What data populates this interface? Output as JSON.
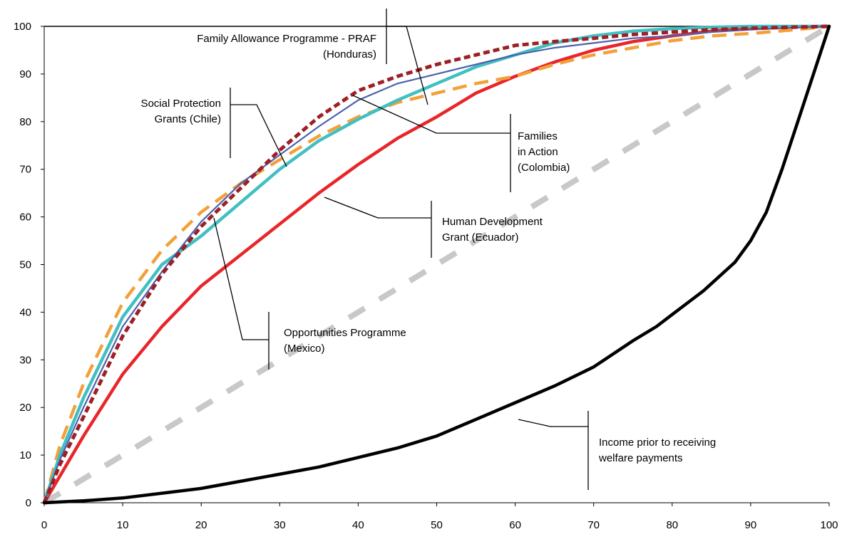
{
  "chart_data": {
    "type": "line",
    "title": "",
    "xlabel": "",
    "ylabel": "",
    "xlim": [
      0,
      100
    ],
    "ylim": [
      0,
      100
    ],
    "x_ticks": [
      0,
      10,
      20,
      30,
      40,
      50,
      60,
      70,
      80,
      90,
      100
    ],
    "y_ticks": [
      0,
      10,
      20,
      30,
      40,
      50,
      60,
      70,
      80,
      90,
      100
    ],
    "grid": false,
    "legend": "none",
    "series": [
      {
        "key": "equality",
        "color": "#c8c8c8",
        "style": "dashed-thick",
        "x": [
          0,
          100
        ],
        "y": [
          0,
          100
        ]
      },
      {
        "key": "ecuador",
        "color": "#e8262a",
        "style": "solid-thick",
        "x": [
          0,
          5,
          10,
          15,
          20,
          25,
          30,
          35,
          40,
          45,
          50,
          55,
          60,
          65,
          70,
          75,
          80,
          85,
          90,
          95,
          100
        ],
        "y": [
          0,
          14,
          27,
          37,
          45.5,
          52,
          58.5,
          65,
          71,
          76.5,
          81,
          86,
          89.5,
          92.5,
          95,
          96.8,
          98,
          99,
          99.6,
          99.9,
          100
        ]
      },
      {
        "key": "colombia",
        "color": "#f2a13a",
        "style": "dashed-thick",
        "x": [
          0,
          2,
          5,
          10,
          15,
          20,
          25,
          30,
          35,
          40,
          45,
          50,
          55,
          60,
          65,
          70,
          75,
          80,
          85,
          90,
          95,
          100
        ],
        "y": [
          0,
          12,
          25,
          42,
          53,
          61,
          67,
          72,
          77,
          81,
          84,
          86,
          88,
          89.5,
          92,
          94,
          95.5,
          97,
          98,
          98.5,
          99.2,
          100
        ]
      },
      {
        "key": "chile",
        "color": "#42bfc1",
        "style": "solid-thick",
        "x": [
          0,
          2,
          5,
          10,
          15,
          20,
          25,
          30,
          35,
          40,
          45,
          50,
          55,
          60,
          65,
          70,
          75,
          80,
          85,
          90,
          95,
          100
        ],
        "y": [
          0,
          10,
          22,
          39,
          50,
          56,
          63,
          70,
          76,
          80.5,
          84.5,
          88,
          91.5,
          94,
          96.5,
          98,
          99,
          99.5,
          99.8,
          100,
          100,
          100
        ]
      },
      {
        "key": "mexico",
        "color": "#4a62b0",
        "style": "solid-thin",
        "x": [
          0,
          2,
          5,
          10,
          15,
          20,
          25,
          30,
          35,
          40,
          45,
          50,
          55,
          60,
          65,
          70,
          75,
          80,
          85,
          90,
          95,
          100
        ],
        "y": [
          0,
          9,
          20,
          37,
          48.5,
          59,
          67,
          73,
          79,
          84.5,
          88,
          90,
          92,
          94,
          95.5,
          96.5,
          97.5,
          98,
          98.8,
          99.3,
          99.7,
          100
        ]
      },
      {
        "key": "honduras",
        "color": "#9c2025",
        "style": "dotted-thick",
        "x": [
          0,
          2,
          5,
          10,
          15,
          20,
          25,
          30,
          35,
          40,
          45,
          50,
          55,
          60,
          65,
          70,
          75,
          80,
          85,
          90,
          95,
          100
        ],
        "y": [
          0,
          8,
          18,
          35,
          48,
          58,
          66,
          74,
          81,
          86.5,
          89.5,
          92,
          94,
          96,
          96.8,
          97.5,
          98.3,
          98.8,
          99.3,
          99.6,
          99.8,
          100
        ]
      },
      {
        "key": "prior",
        "color": "#000000",
        "style": "solid-thick",
        "x": [
          0,
          5,
          10,
          15,
          20,
          25,
          30,
          35,
          40,
          45,
          50,
          55,
          60,
          65,
          70,
          75,
          78,
          80,
          82,
          84,
          86,
          88,
          90,
          92,
          94,
          96,
          98,
          99,
          100
        ],
        "y": [
          0,
          0.4,
          1,
          2,
          3,
          4.5,
          6,
          7.5,
          9.5,
          11.5,
          14,
          17.5,
          21,
          24.5,
          28.5,
          34,
          37,
          39.5,
          42,
          44.5,
          47.5,
          50.5,
          55,
          61,
          70,
          80,
          90,
          95,
          100
        ]
      }
    ],
    "annotations": [
      {
        "key": "praf",
        "lines": [
          "Family Allowance Programme - PRAF",
          "(Honduras)"
        ]
      },
      {
        "key": "chile",
        "lines": [
          "Social Protection",
          "Grants (Chile)"
        ]
      },
      {
        "key": "colombia",
        "lines": [
          "Families",
          "in Action",
          "(Colombia)"
        ]
      },
      {
        "key": "ecuador",
        "lines": [
          "Human Development",
          "Grant (Ecuador)"
        ]
      },
      {
        "key": "mexico",
        "lines": [
          "Opportunities Programme",
          "(Mexico)"
        ]
      },
      {
        "key": "prior",
        "lines": [
          "Income prior to receiving",
          "welfare payments"
        ]
      }
    ]
  }
}
